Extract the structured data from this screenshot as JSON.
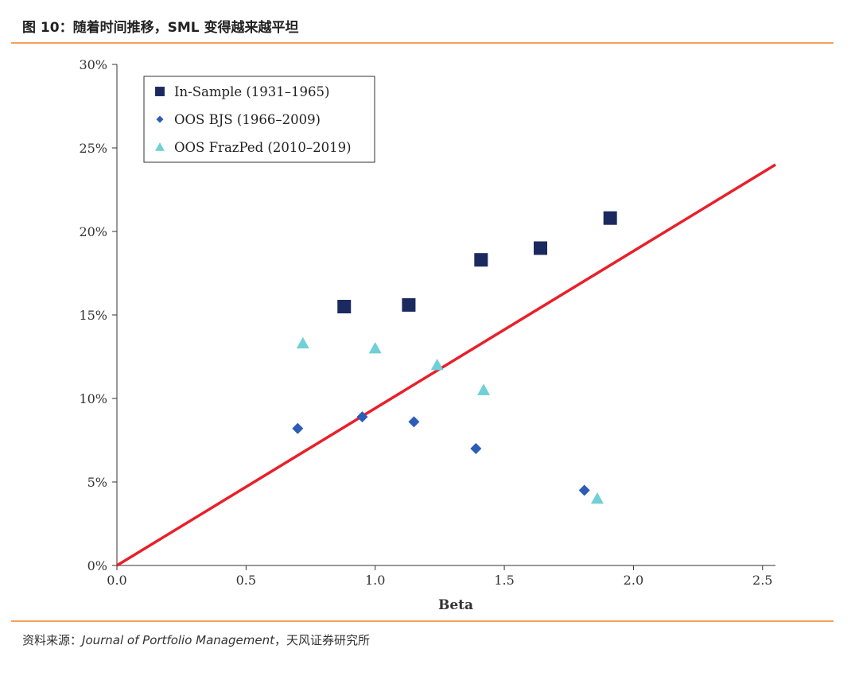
{
  "figure": {
    "title": "图 10：随着时间推移，SML 变得越来越平坦",
    "source_prefix": "资料来源：",
    "source_journal": "Journal of Portfolio Management",
    "source_suffix": "，天风证券研究所"
  },
  "colors": {
    "accent_rule": "#f4a15a",
    "in_sample": "#1b2a5e",
    "oos_bjs": "#2d5bb8",
    "oos_frazped": "#6fd0d6",
    "sml_line": "#e8202a"
  },
  "chart_data": {
    "type": "scatter",
    "title": "",
    "xlabel": "Beta",
    "ylabel": "",
    "xlim": [
      0,
      2.55
    ],
    "ylim": [
      0,
      30
    ],
    "x_ticks": [
      0,
      0.5,
      1.0,
      1.5,
      2.0,
      2.5
    ],
    "x_tick_labels": [
      "0.0",
      "0.5",
      "1.0",
      "1.5",
      "2.0",
      "2.5"
    ],
    "y_ticks": [
      0,
      5,
      10,
      15,
      20,
      25,
      30
    ],
    "y_tick_labels": [
      "0%",
      "5%",
      "10%",
      "15%",
      "20%",
      "25%",
      "30%"
    ],
    "grid": false,
    "legend_position": "top-left",
    "series": [
      {
        "name": "In-Sample (1931–1965)",
        "marker": "square",
        "color": "#1b2a5e",
        "points": [
          {
            "x": 0.88,
            "y": 15.5
          },
          {
            "x": 1.13,
            "y": 15.6
          },
          {
            "x": 1.41,
            "y": 18.3
          },
          {
            "x": 1.64,
            "y": 19.0
          },
          {
            "x": 1.91,
            "y": 20.8
          }
        ]
      },
      {
        "name": "OOS BJS (1966–2009)",
        "marker": "diamond",
        "color": "#2d5bb8",
        "points": [
          {
            "x": 0.7,
            "y": 8.2
          },
          {
            "x": 0.95,
            "y": 8.9
          },
          {
            "x": 1.15,
            "y": 8.6
          },
          {
            "x": 1.39,
            "y": 7.0
          },
          {
            "x": 1.81,
            "y": 4.5
          }
        ]
      },
      {
        "name": "OOS FrazPed (2010–2019)",
        "marker": "triangle",
        "color": "#6fd0d6",
        "points": [
          {
            "x": 0.72,
            "y": 13.3
          },
          {
            "x": 1.0,
            "y": 13.0
          },
          {
            "x": 1.24,
            "y": 12.0
          },
          {
            "x": 1.42,
            "y": 10.5
          },
          {
            "x": 1.86,
            "y": 4.0
          }
        ]
      }
    ],
    "sml_line": {
      "name": "SML",
      "color": "#e8202a",
      "x": [
        0,
        2.55
      ],
      "y": [
        0,
        24
      ]
    }
  }
}
